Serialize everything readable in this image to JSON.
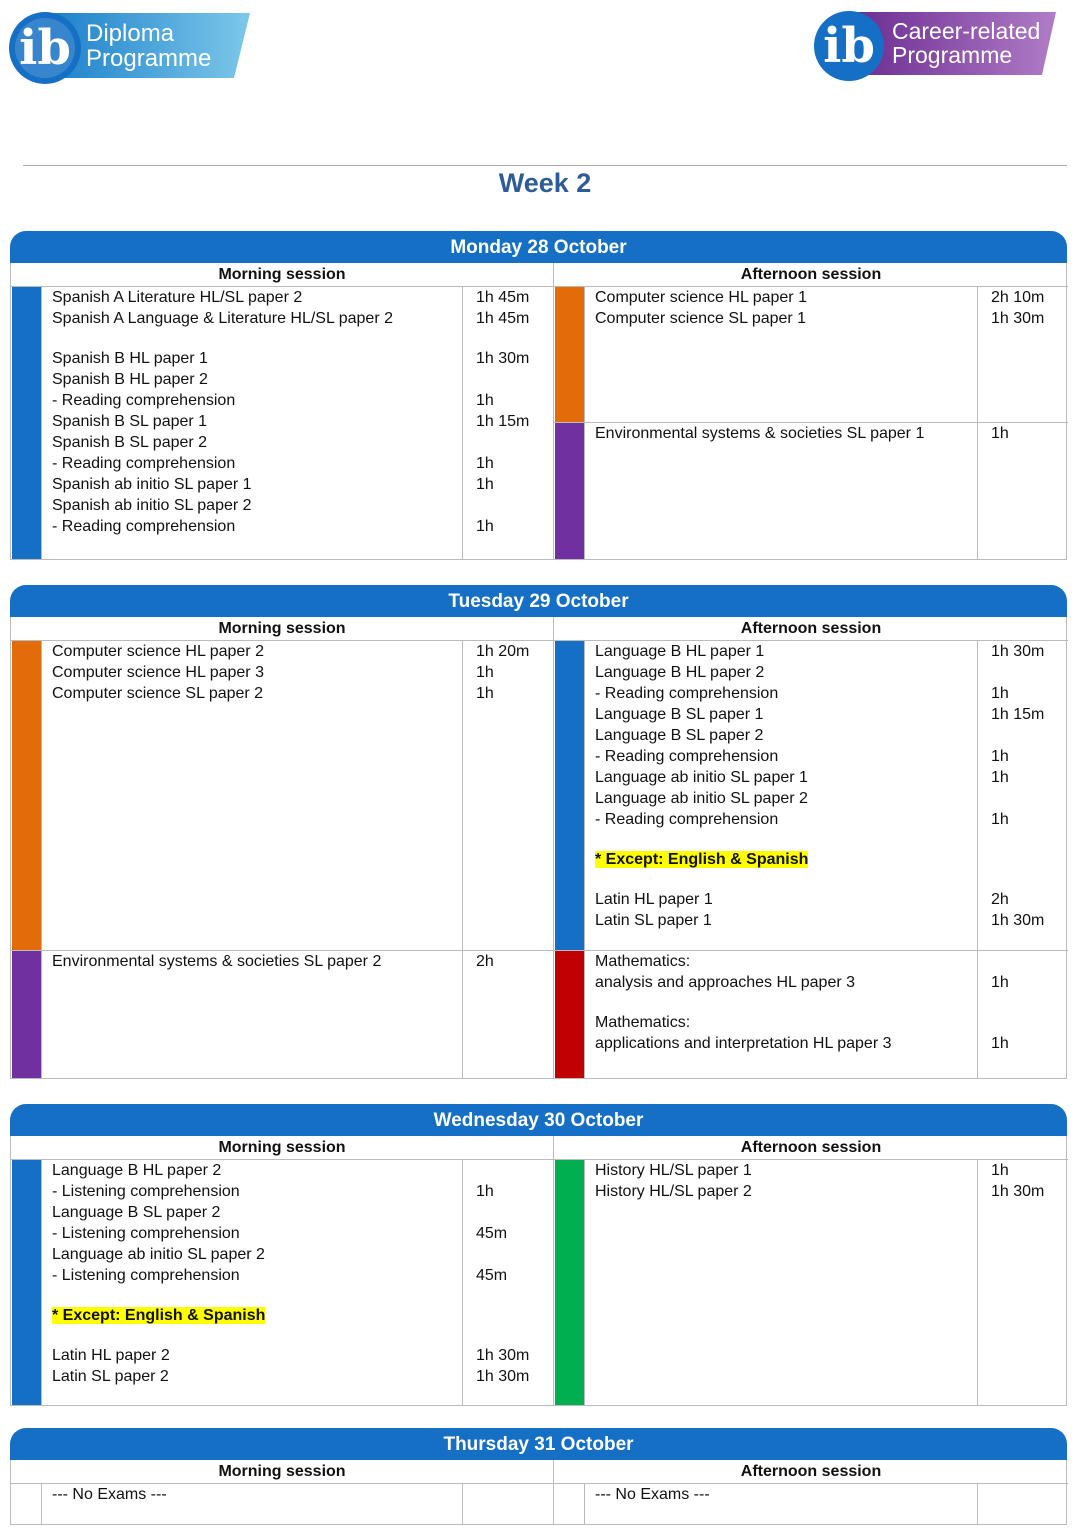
{
  "logos": {
    "left": [
      "Diploma",
      "Programme"
    ],
    "right": [
      "Career-related",
      "Programme"
    ]
  },
  "title": "Week 2",
  "days": [
    {
      "heading": "Monday 28 October",
      "sessions": [
        {
          "label": "Morning session",
          "blocks": [
            {
              "color": "#1570c5",
              "groups": [
                [
                  {
                    "text": "Spanish A Literature HL/SL paper 2",
                    "duration": "1h 45m"
                  },
                  {
                    "text": "Spanish A Language & Literature HL/SL paper 2",
                    "duration": "1h 45m"
                  }
                ],
                [
                  {
                    "text": "Spanish B HL paper 1",
                    "duration": "1h 30m"
                  },
                  {
                    "text": "Spanish B HL paper 2"
                  },
                  {
                    "text": "- Reading comprehension",
                    "duration": "1h"
                  },
                  {
                    "text": "Spanish B SL paper 1",
                    "duration": "1h 15m"
                  },
                  {
                    "text": "Spanish B SL paper 2"
                  },
                  {
                    "text": "- Reading comprehension",
                    "duration": "1h"
                  },
                  {
                    "text": "Spanish ab initio SL paper 1",
                    "duration": "1h"
                  },
                  {
                    "text": "Spanish ab initio SL paper 2"
                  },
                  {
                    "text": "- Reading comprehension",
                    "duration": "1h"
                  }
                ]
              ]
            }
          ]
        },
        {
          "label": "Afternoon session",
          "blocks": [
            {
              "color": "#e36c0a",
              "groups": [
                [
                  {
                    "text": "Computer science HL paper 1",
                    "duration": "2h 10m"
                  },
                  {
                    "text": "Computer science SL paper 1",
                    "duration": "1h 30m"
                  }
                ]
              ]
            },
            {
              "color": "#7030a0",
              "groups": [
                [
                  {
                    "text": "Environmental systems & societies SL paper 1",
                    "duration": "1h"
                  }
                ]
              ]
            }
          ]
        }
      ]
    },
    {
      "heading": "Tuesday 29 October",
      "sessions": [
        {
          "label": "Morning session",
          "blocks": [
            {
              "color": "#e36c0a",
              "groups": [
                [
                  {
                    "text": "Computer science HL paper 2",
                    "duration": "1h 20m"
                  },
                  {
                    "text": "Computer science HL paper 3",
                    "duration": "1h"
                  },
                  {
                    "text": "Computer science SL paper 2",
                    "duration": "1h"
                  }
                ]
              ]
            },
            {
              "color": "#7030a0",
              "groups": [
                [
                  {
                    "text": "Environmental systems & societies SL paper 2",
                    "duration": "2h"
                  }
                ]
              ]
            }
          ]
        },
        {
          "label": "Afternoon session",
          "blocks": [
            {
              "color": "#1570c5",
              "groups": [
                [
                  {
                    "text": "Language B HL paper 1",
                    "duration": "1h 30m"
                  },
                  {
                    "text": "Language B HL paper 2"
                  },
                  {
                    "text": "- Reading comprehension",
                    "duration": "1h"
                  },
                  {
                    "text": "Language B SL paper 1",
                    "duration": "1h 15m"
                  },
                  {
                    "text": "Language B SL paper 2"
                  },
                  {
                    "text": "- Reading comprehension",
                    "duration": "1h"
                  },
                  {
                    "text": "Language ab initio SL paper 1",
                    "duration": "1h"
                  },
                  {
                    "text": "Language ab initio SL paper 2"
                  },
                  {
                    "text": "- Reading comprehension",
                    "duration": "1h"
                  }
                ],
                [
                  {
                    "text": "* Except: English & Spanish",
                    "highlight": true
                  }
                ],
                [
                  {
                    "text": "Latin HL paper 1",
                    "duration": "2h"
                  },
                  {
                    "text": "Latin SL paper 1",
                    "duration": "1h 30m"
                  }
                ]
              ]
            },
            {
              "color": "#c00000",
              "groups": [
                [
                  {
                    "text": "Mathematics:"
                  },
                  {
                    "text": "analysis and approaches HL paper 3",
                    "duration": "1h"
                  }
                ],
                [
                  {
                    "text": "Mathematics:"
                  },
                  {
                    "text": "applications and interpretation HL paper 3",
                    "duration": "1h"
                  }
                ]
              ]
            }
          ]
        }
      ]
    },
    {
      "heading": "Wednesday 30 October",
      "sessions": [
        {
          "label": "Morning session",
          "blocks": [
            {
              "color": "#1570c5",
              "groups": [
                [
                  {
                    "text": "Language B HL paper 2"
                  },
                  {
                    "text": "- Listening comprehension",
                    "duration": "1h"
                  },
                  {
                    "text": "Language B SL paper 2"
                  },
                  {
                    "text": "- Listening comprehension",
                    "duration": "45m"
                  },
                  {
                    "text": "Language ab initio SL paper 2"
                  },
                  {
                    "text": "- Listening comprehension",
                    "duration": "45m"
                  }
                ],
                [
                  {
                    "text": "* Except: English & Spanish",
                    "highlight": true
                  }
                ],
                [
                  {
                    "text": "Latin HL paper 2",
                    "duration": "1h 30m"
                  },
                  {
                    "text": "Latin SL paper 2",
                    "duration": "1h 30m"
                  }
                ]
              ]
            }
          ]
        },
        {
          "label": "Afternoon session",
          "blocks": [
            {
              "color": "#00b050",
              "groups": [
                [
                  {
                    "text": "History HL/SL paper 1",
                    "duration": "1h"
                  },
                  {
                    "text": "History HL/SL paper 2",
                    "duration": "1h 30m"
                  }
                ]
              ]
            }
          ]
        }
      ]
    },
    {
      "heading": "Thursday 31 October",
      "sessions": [
        {
          "label": "Morning session",
          "blocks": [
            {
              "groups": [
                [
                  {
                    "text": "--- No Exams ---"
                  }
                ]
              ]
            }
          ]
        },
        {
          "label": "Afternoon session",
          "blocks": [
            {
              "groups": [
                [
                  {
                    "text": "--- No Exams ---"
                  }
                ]
              ]
            }
          ]
        }
      ]
    }
  ]
}
